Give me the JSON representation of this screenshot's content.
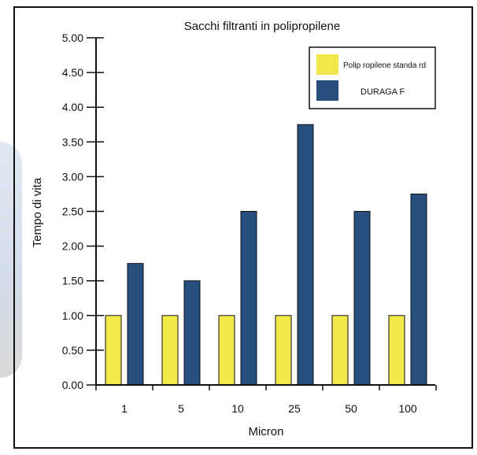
{
  "chart_data": {
    "type": "bar",
    "title": "Sacchi filtranti in polipropilene",
    "xlabel": "Micron",
    "ylabel": "Tempo di vita",
    "categories": [
      "1",
      "5",
      "10",
      "25",
      "50",
      "100"
    ],
    "ylim": [
      0,
      5
    ],
    "yticks": [
      "0.00",
      "0.50",
      "1.00",
      "1.50",
      "2.00",
      "2.50",
      "3.00",
      "3.50",
      "4.00",
      "4.50",
      "5.00"
    ],
    "series": [
      {
        "name": "Polip ropilene standa rd",
        "color": "#f2e84a",
        "values": [
          1.0,
          1.0,
          1.0,
          1.0,
          1.0,
          1.0
        ]
      },
      {
        "name": "DURAGA F",
        "color": "#27507f",
        "values": [
          1.75,
          1.5,
          2.5,
          3.75,
          2.5,
          2.75
        ]
      }
    ],
    "grid": false,
    "legend": "top-right"
  }
}
